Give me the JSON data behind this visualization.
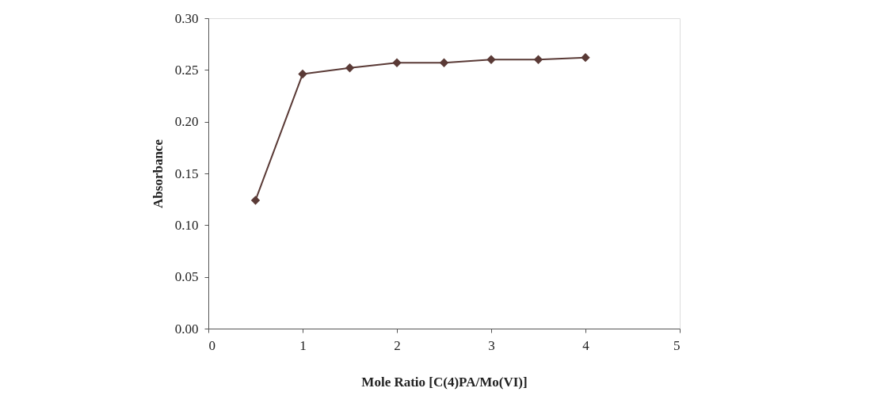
{
  "chart_data": {
    "type": "line",
    "xlabel": "Mole Ratio [C(4)PA/Mo(VI)]",
    "ylabel": "Absorbance",
    "x": [
      0.5,
      1,
      1.5,
      2,
      2.5,
      3,
      3.5,
      4
    ],
    "series": [
      {
        "color": "#5a3a36",
        "values": [
          0.124,
          0.246,
          0.252,
          0.257,
          0.257,
          0.26,
          0.26,
          0.262
        ]
      }
    ],
    "xlim": [
      0,
      5
    ],
    "xticks": [
      0,
      1,
      2,
      3,
      4,
      5
    ],
    "ylim": [
      0,
      0.3
    ],
    "yticks": [
      {
        "value": 0,
        "label": "0.00"
      },
      {
        "value": 0.05,
        "label": "0.05"
      },
      {
        "value": 0.1,
        "label": "0.10"
      },
      {
        "value": 0.15,
        "label": "0.15"
      },
      {
        "value": 0.2,
        "label": "0.20"
      },
      {
        "value": 0.25,
        "label": "0.25"
      },
      {
        "value": 0.3,
        "label": "0.30"
      }
    ],
    "marker": "diamond",
    "line_style": "solid",
    "grid": false
  }
}
